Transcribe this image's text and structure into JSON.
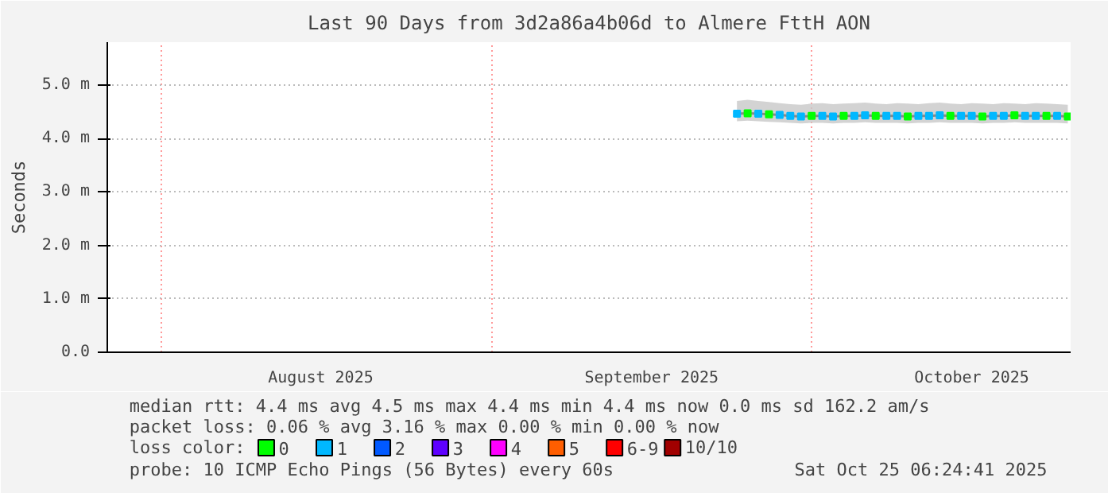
{
  "chart_data": {
    "type": "line",
    "title": "Last 90 Days from 3d2a86a4b06d to Almere FttH AON",
    "ylabel": "Seconds",
    "x": [
      "2025-09-24",
      "2025-09-25",
      "2025-09-26",
      "2025-09-27",
      "2025-09-28",
      "2025-09-29",
      "2025-09-30",
      "2025-10-01",
      "2025-10-02",
      "2025-10-03",
      "2025-10-04",
      "2025-10-05",
      "2025-10-06",
      "2025-10-07",
      "2025-10-08",
      "2025-10-09",
      "2025-10-10",
      "2025-10-11",
      "2025-10-12",
      "2025-10-13",
      "2025-10-14",
      "2025-10-15",
      "2025-10-16",
      "2025-10-17",
      "2025-10-18",
      "2025-10-19",
      "2025-10-20",
      "2025-10-21",
      "2025-10-22",
      "2025-10-23",
      "2025-10-24",
      "2025-10-25"
    ],
    "series": [
      {
        "marker": "none",
        "color": "#888888",
        "values": [
          4.46,
          4.47,
          4.46,
          4.45,
          4.44,
          4.42,
          4.41,
          4.42,
          4.42,
          4.41,
          4.42,
          4.42,
          4.43,
          4.42,
          4.42,
          4.42,
          4.41,
          4.42,
          4.42,
          4.43,
          4.42,
          4.42,
          4.42,
          4.41,
          4.42,
          4.42,
          4.43,
          4.42,
          4.42,
          4.42,
          4.42,
          4.41
        ],
        "lower": [
          4.32,
          4.33,
          4.32,
          4.31,
          4.3,
          4.29,
          4.28,
          4.29,
          4.29,
          4.28,
          4.29,
          4.29,
          4.3,
          4.29,
          4.29,
          4.29,
          4.28,
          4.29,
          4.29,
          4.3,
          4.29,
          4.29,
          4.29,
          4.28,
          4.29,
          4.29,
          4.3,
          4.29,
          4.29,
          4.29,
          4.29,
          4.28
        ],
        "upper": [
          4.7,
          4.72,
          4.7,
          4.68,
          4.66,
          4.64,
          4.63,
          4.65,
          4.66,
          4.64,
          4.65,
          4.66,
          4.67,
          4.65,
          4.64,
          4.66,
          4.65,
          4.64,
          4.66,
          4.67,
          4.65,
          4.64,
          4.66,
          4.65,
          4.64,
          4.66,
          4.65,
          4.64,
          4.66,
          4.65,
          4.64,
          4.63
        ]
      },
      {
        "type": "scatter",
        "name": "0",
        "color": "#00ff00",
        "values": [
          null,
          4.47,
          null,
          4.45,
          null,
          null,
          null,
          4.42,
          null,
          null,
          4.42,
          null,
          null,
          4.42,
          null,
          null,
          4.41,
          null,
          null,
          null,
          4.42,
          null,
          null,
          4.41,
          null,
          null,
          4.43,
          null,
          null,
          4.42,
          null,
          4.41
        ]
      },
      {
        "type": "scatter",
        "name": "1",
        "color": "#00b8ff",
        "values": [
          4.46,
          null,
          4.46,
          null,
          4.44,
          4.42,
          4.41,
          null,
          4.42,
          4.41,
          null,
          4.42,
          4.43,
          null,
          4.42,
          4.42,
          null,
          4.42,
          4.42,
          4.43,
          null,
          4.42,
          4.42,
          null,
          4.42,
          4.42,
          null,
          4.42,
          4.42,
          null,
          4.42,
          null
        ]
      },
      {
        "type": "scatter",
        "name": "2",
        "color": "#0059ff",
        "values": [
          null,
          null,
          null,
          null,
          null,
          null,
          null,
          null,
          null,
          null,
          null,
          null,
          null,
          null,
          null,
          null,
          null,
          null,
          null,
          null,
          null,
          null,
          null,
          null,
          null,
          null,
          null,
          null,
          null,
          null,
          null,
          null
        ]
      },
      {
        "type": "scatter",
        "name": "3",
        "color": "#5e00ff",
        "values": [
          null,
          null,
          null,
          null,
          null,
          null,
          null,
          null,
          null,
          null,
          null,
          null,
          null,
          null,
          null,
          null,
          null,
          null,
          null,
          null,
          null,
          null,
          null,
          null,
          null,
          null,
          null,
          null,
          null,
          null,
          null,
          null
        ]
      },
      {
        "type": "scatter",
        "name": "4",
        "color": "#ff00ff",
        "values": [
          null,
          null,
          null,
          null,
          null,
          null,
          null,
          null,
          null,
          null,
          null,
          null,
          null,
          null,
          null,
          null,
          null,
          null,
          null,
          null,
          null,
          null,
          null,
          null,
          null,
          null,
          null,
          null,
          null,
          null,
          null,
          null
        ]
      },
      {
        "type": "scatter",
        "name": "5",
        "color": "#ff5e00",
        "values": [
          null,
          null,
          null,
          null,
          null,
          null,
          null,
          null,
          null,
          null,
          null,
          null,
          null,
          null,
          null,
          null,
          null,
          null,
          null,
          null,
          null,
          null,
          null,
          null,
          null,
          null,
          null,
          null,
          null,
          null,
          null,
          null
        ]
      },
      {
        "type": "scatter",
        "name": "6-9",
        "color": "#ff0000",
        "values": [
          null,
          null,
          null,
          null,
          null,
          null,
          null,
          null,
          null,
          null,
          null,
          null,
          null,
          null,
          null,
          null,
          null,
          null,
          null,
          null,
          null,
          null,
          null,
          null,
          null,
          null,
          null,
          null,
          null,
          null,
          null,
          null
        ]
      },
      {
        "type": "scatter",
        "name": "10/10",
        "color": "#a10000",
        "values": [
          null,
          null,
          null,
          null,
          null,
          null,
          null,
          null,
          null,
          null,
          null,
          null,
          null,
          null,
          null,
          null,
          null,
          null,
          null,
          null,
          null,
          null,
          null,
          null,
          null,
          null,
          null,
          null,
          null,
          null,
          null,
          null
        ]
      }
    ],
    "legend_title": "loss color:",
    "legend": "bottom",
    "marker": "square",
    "grid": true,
    "xlim": [
      "2025-07-27",
      "2025-10-25T06:24"
    ],
    "xticks": [
      {
        "value": "2025-08-01",
        "label": null
      },
      {
        "value": "2025-08-16",
        "label": "August 2025"
      },
      {
        "value": "2025-09-01",
        "label": null
      },
      {
        "value": "2025-09-16",
        "label": "September 2025"
      },
      {
        "value": "2025-10-01",
        "label": null
      },
      {
        "value": "2025-10-16",
        "label": "October 2025"
      }
    ],
    "ylim": [
      0,
      5.8
    ],
    "yticks": [
      {
        "value": 0,
        "label": "0.0"
      },
      {
        "value": 1,
        "label": "1.0 m"
      },
      {
        "value": 2,
        "label": "2.0 m"
      },
      {
        "value": 3,
        "label": "3.0 m"
      },
      {
        "value": 4,
        "label": "4.0 m"
      },
      {
        "value": 5,
        "label": "5.0 m"
      }
    ],
    "annotations": [
      "median rtt:  4.4 ms avg  4.5 ms max  4.4 ms min  4.4 ms now  0.0 ms sd  162.2   am/s",
      "packet loss: 0.06 % avg  3.16 % max  0.00 % min  0.00 % now",
      "probe:       10 ICMP Echo Pings (56 Bytes) every 60s",
      "Sat Oct 25 06:24:41 2025"
    ]
  }
}
